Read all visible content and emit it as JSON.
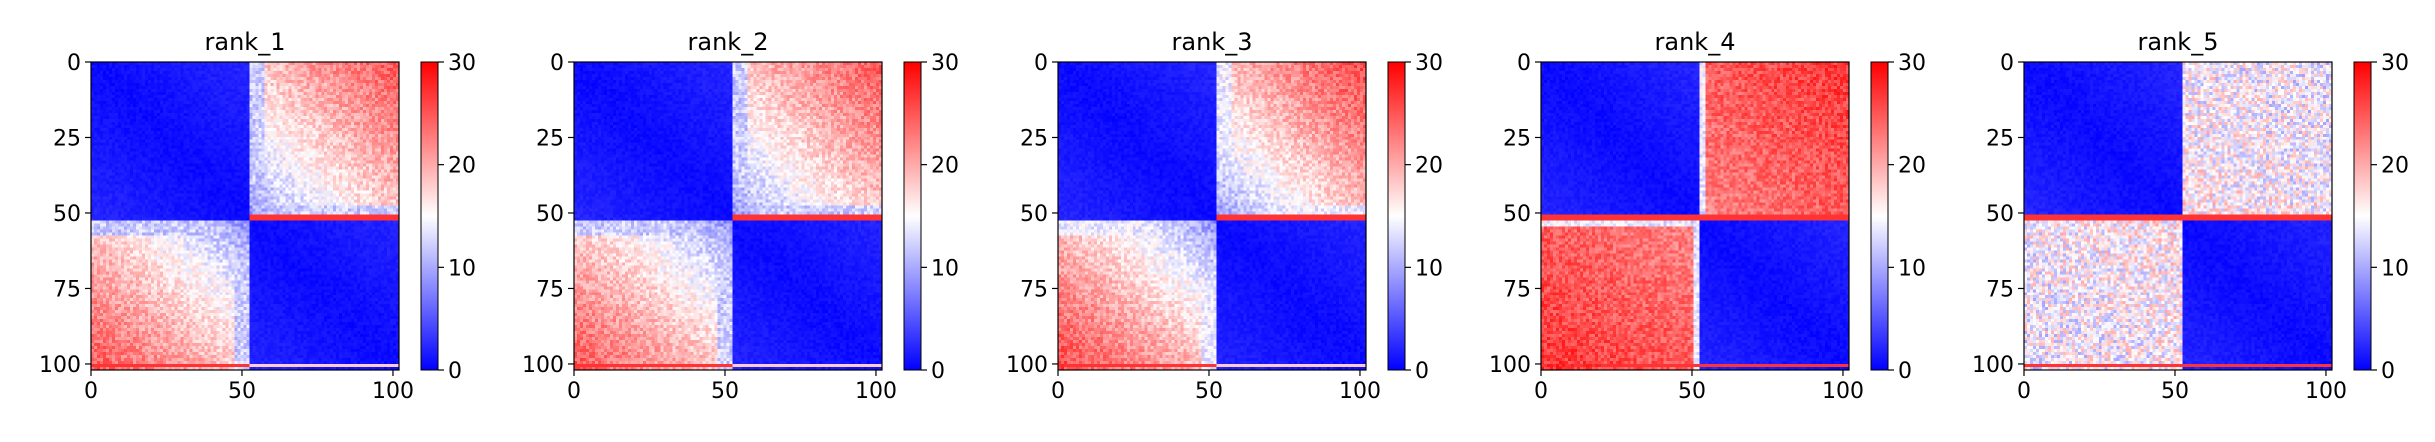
{
  "figure": {
    "colormap": "bwr",
    "colors": {
      "low": "#0000ff",
      "mid": "#ffffff",
      "high": "#ff0000",
      "axis": "#000000"
    }
  },
  "chart_data": [
    {
      "type": "heatmap",
      "title": "rank_1",
      "shape": [
        103,
        103
      ],
      "split": 53,
      "xlim": [
        0,
        102
      ],
      "ylim": [
        102,
        0
      ],
      "xticks": [
        0,
        50,
        100
      ],
      "yticks": [
        0,
        25,
        50,
        75,
        100
      ],
      "colorbar": {
        "min": 0,
        "max": 30,
        "ticks": [
          0,
          10,
          20,
          30
        ]
      },
      "description_values": {
        "diag_block_low": 0,
        "off_block_near_boundary": 12,
        "off_block_far_corner": 25,
        "row_boundary_spike": 30
      },
      "pattern": "smooth"
    },
    {
      "type": "heatmap",
      "title": "rank_2",
      "shape": [
        103,
        103
      ],
      "split": 53,
      "xlim": [
        0,
        102
      ],
      "ylim": [
        102,
        0
      ],
      "xticks": [
        0,
        50,
        100
      ],
      "yticks": [
        0,
        25,
        50,
        75,
        100
      ],
      "colorbar": {
        "min": 0,
        "max": 30,
        "ticks": [
          0,
          10,
          20,
          30
        ]
      },
      "description_values": {
        "diag_block_low": 0,
        "off_block_near_boundary": 12,
        "off_block_far_corner": 25,
        "row_boundary_spike": 30
      },
      "pattern": "smooth"
    },
    {
      "type": "heatmap",
      "title": "rank_3",
      "shape": [
        103,
        103
      ],
      "split": 53,
      "xlim": [
        0,
        102
      ],
      "ylim": [
        102,
        0
      ],
      "xticks": [
        0,
        50,
        100
      ],
      "yticks": [
        0,
        25,
        50,
        75,
        100
      ],
      "colorbar": {
        "min": 0,
        "max": 30,
        "ticks": [
          0,
          10,
          20,
          30
        ]
      },
      "description_values": {
        "diag_block_low": 0,
        "off_block_near_boundary": 14,
        "off_block_far_corner": 26,
        "row_boundary_spike": 30
      },
      "pattern": "smooth"
    },
    {
      "type": "heatmap",
      "title": "rank_4",
      "shape": [
        103,
        103
      ],
      "split": 53,
      "xlim": [
        0,
        102
      ],
      "ylim": [
        102,
        0
      ],
      "xticks": [
        0,
        50,
        100
      ],
      "yticks": [
        0,
        25,
        50,
        75,
        100
      ],
      "colorbar": {
        "min": 0,
        "max": 30,
        "ticks": [
          0,
          10,
          20,
          30
        ]
      },
      "description_values": {
        "diag_block_low": 0,
        "off_block_near_boundary": 22,
        "off_block_far_corner": 27,
        "row_boundary_spike": 30
      },
      "pattern": "sharp"
    },
    {
      "type": "heatmap",
      "title": "rank_5",
      "shape": [
        103,
        103
      ],
      "split": 53,
      "xlim": [
        0,
        102
      ],
      "ylim": [
        102,
        0
      ],
      "xticks": [
        0,
        50,
        100
      ],
      "yticks": [
        0,
        25,
        50,
        75,
        100
      ],
      "colorbar": {
        "min": 0,
        "max": 30,
        "ticks": [
          0,
          10,
          20,
          30
        ]
      },
      "description_values": {
        "diag_block_low": 0,
        "off_block_near_boundary": 16,
        "off_block_far_corner": 14,
        "row_boundary_spike": 30
      },
      "pattern": "mixed"
    }
  ]
}
